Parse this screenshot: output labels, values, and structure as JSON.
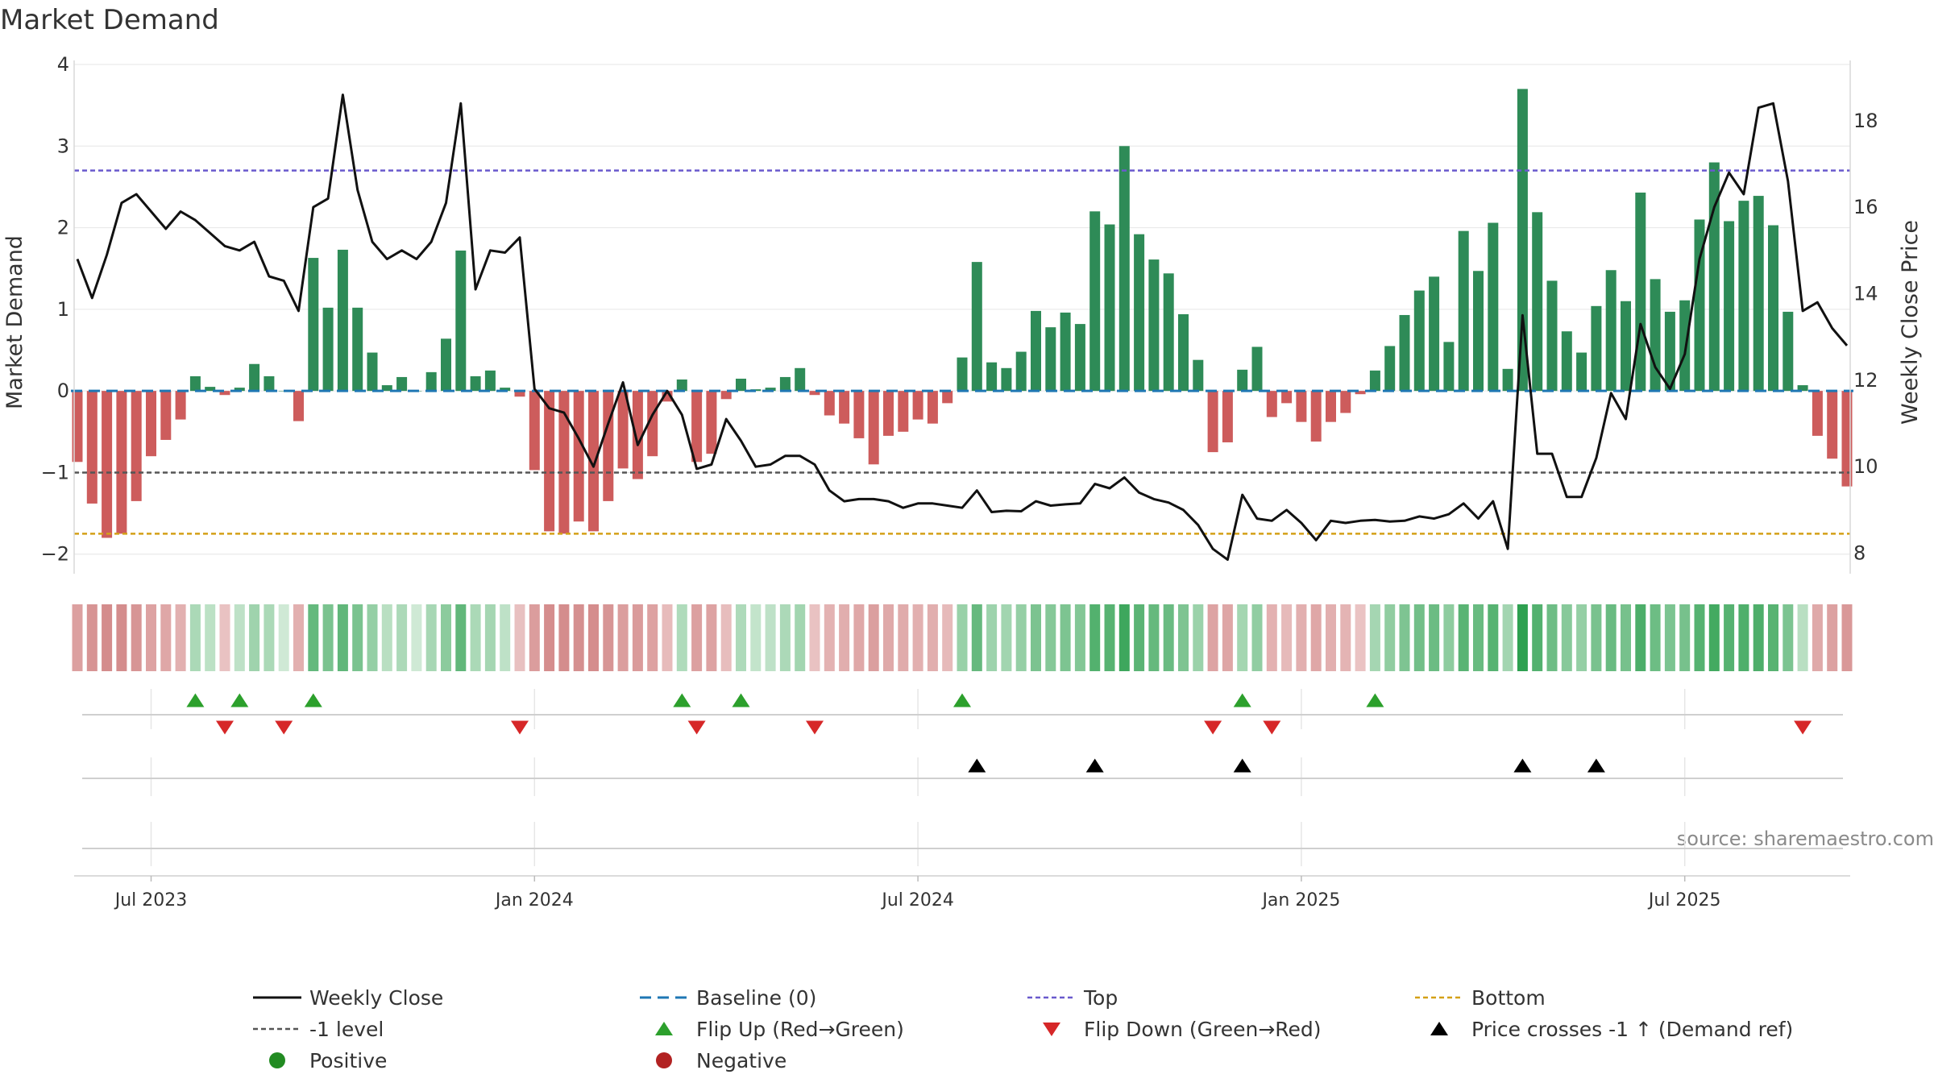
{
  "chart_data": {
    "type": "bar+line",
    "title": "Market Demand",
    "ylabel_left": "Market Demand",
    "ylabel_right": "Weekly Close Price",
    "ylim_left": [
      -2.2,
      4.0
    ],
    "ylim_right": [
      7.6,
      19.3
    ],
    "yticks_left": [
      {
        "v": 4,
        "label": "4"
      },
      {
        "v": 3,
        "label": "3"
      },
      {
        "v": 2,
        "label": "2"
      },
      {
        "v": 1,
        "label": "1"
      },
      {
        "v": 0,
        "label": "0"
      },
      {
        "v": -1,
        "label": "−1"
      },
      {
        "v": -2,
        "label": "−2"
      }
    ],
    "yticks_right": [
      {
        "v": 8,
        "label": "8"
      },
      {
        "v": 10,
        "label": "10"
      },
      {
        "v": 12,
        "label": "12"
      },
      {
        "v": 14,
        "label": "14"
      },
      {
        "v": 16,
        "label": "16"
      },
      {
        "v": 18,
        "label": "18"
      }
    ],
    "xticks": [
      {
        "week": 5,
        "label": "Jul 2023"
      },
      {
        "week": 31,
        "label": "Jan 2024"
      },
      {
        "week": 57,
        "label": "Jul 2024"
      },
      {
        "week": 83,
        "label": "Jan 2025"
      },
      {
        "week": 109,
        "label": "Jul 2025"
      }
    ],
    "top_level": 2.7,
    "bottom_level": -1.75,
    "minus_one_level": -1,
    "demand": [
      -0.87,
      -1.38,
      -1.8,
      -1.75,
      -1.35,
      -0.8,
      -0.6,
      -0.35,
      0.18,
      0.05,
      -0.05,
      0.04,
      0.33,
      0.18,
      0.0,
      -0.37,
      1.63,
      1.02,
      1.73,
      1.02,
      0.47,
      0.07,
      0.17,
      0.0,
      0.23,
      0.64,
      1.72,
      0.18,
      0.25,
      0.04,
      -0.07,
      -0.97,
      -1.72,
      -1.75,
      -1.6,
      -1.72,
      -1.35,
      -0.95,
      -1.08,
      -0.8,
      -0.13,
      0.14,
      -0.87,
      -0.77,
      -0.1,
      0.15,
      0.02,
      0.04,
      0.17,
      0.28,
      -0.05,
      -0.3,
      -0.4,
      -0.58,
      -0.9,
      -0.55,
      -0.5,
      -0.35,
      -0.4,
      -0.15,
      0.41,
      1.58,
      0.35,
      0.28,
      0.48,
      0.98,
      0.78,
      0.96,
      0.82,
      2.2,
      2.04,
      3.0,
      1.92,
      1.61,
      1.44,
      0.94,
      0.38,
      -0.75,
      -0.63,
      0.26,
      0.54,
      -0.32,
      -0.15,
      -0.38,
      -0.62,
      -0.38,
      -0.27,
      -0.04,
      0.25,
      0.55,
      0.93,
      1.23,
      1.4,
      0.6,
      1.96,
      1.47,
      2.06,
      0.27,
      3.7,
      2.19,
      1.35,
      0.73,
      0.47,
      1.04,
      1.48,
      1.1,
      2.43,
      1.37,
      0.97,
      1.11,
      2.1,
      2.8,
      2.08,
      2.33,
      2.39,
      2.03,
      0.97,
      0.07,
      -0.55,
      -0.83,
      -1.17
    ],
    "close": [
      14.8,
      13.9,
      14.9,
      16.1,
      16.3,
      15.9,
      15.5,
      15.9,
      15.7,
      15.4,
      15.1,
      15.0,
      15.2,
      14.4,
      14.3,
      13.6,
      16.0,
      16.2,
      18.6,
      16.4,
      15.2,
      14.8,
      15.0,
      14.8,
      15.2,
      16.1,
      18.4,
      14.1,
      15.0,
      14.95,
      15.3,
      11.8,
      11.35,
      11.25,
      10.65,
      10.0,
      11.0,
      11.95,
      10.5,
      11.2,
      11.75,
      11.2,
      9.95,
      10.05,
      11.1,
      10.6,
      10.0,
      10.05,
      10.25,
      10.25,
      10.05,
      9.45,
      9.2,
      9.25,
      9.25,
      9.2,
      9.05,
      9.15,
      9.15,
      9.1,
      9.05,
      9.45,
      8.95,
      8.98,
      8.97,
      9.2,
      9.1,
      9.13,
      9.15,
      9.6,
      9.5,
      9.75,
      9.4,
      9.25,
      9.17,
      9.0,
      8.65,
      8.1,
      7.85,
      9.35,
      8.8,
      8.75,
      9.0,
      8.7,
      8.3,
      8.75,
      8.7,
      8.75,
      8.77,
      8.73,
      8.75,
      8.85,
      8.8,
      8.9,
      9.15,
      8.8,
      9.2,
      8.1,
      13.5,
      10.3,
      10.3,
      9.3,
      9.3,
      10.2,
      11.7,
      11.1,
      13.3,
      12.3,
      11.8,
      12.6,
      14.8,
      16.0,
      16.8,
      16.3,
      18.3,
      18.4,
      16.6,
      13.6,
      13.8,
      13.2,
      12.8
    ],
    "flip_up": [
      8,
      11,
      16,
      41,
      45,
      60,
      79,
      88
    ],
    "flip_down": [
      10,
      14,
      30,
      42,
      50,
      77,
      81,
      117
    ],
    "price_cross": [
      61,
      69,
      79,
      98,
      103
    ],
    "legend": [
      "Weekly Close",
      "Baseline (0)",
      "Top",
      "Bottom",
      "-1 level",
      "Flip Up (Red→Green)",
      "Flip Down (Green→Red)",
      "Price crosses -1 ↑ (Demand ref)",
      "Positive",
      "Negative"
    ],
    "source": "source: sharemaestro.com"
  },
  "colors": {
    "positive": "#2e8b57",
    "negative": "#cd5c5c",
    "close": "#111111",
    "baseline": "#1f77b4",
    "top": "#6a5acd",
    "bottom": "#d4a017",
    "minus_one": "#555555",
    "flip_up": "#2ca02c",
    "flip_down": "#d62728",
    "cross": "#000000",
    "legend_positive": "#228b22",
    "legend_negative": "#b22222",
    "grid": "#e6e6e6",
    "text": "#333333"
  }
}
